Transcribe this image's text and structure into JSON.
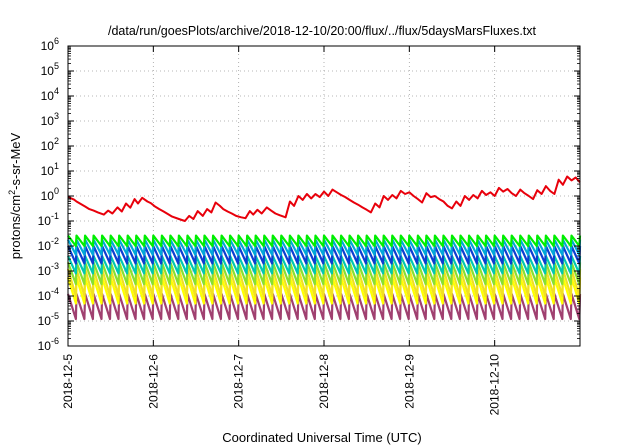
{
  "chart_data": {
    "type": "line",
    "title": "/data/run/goesPlots/archive/2018-12-10/20:00/flux/../flux/5daysMarsFluxes.txt",
    "xlabel": "Coordinated Universal Time (UTC)",
    "ylabel": {
      "base": "protons/cm",
      "sup": "2",
      "rest": "-s-sr-MeV"
    },
    "x_ticks": [
      "2018-12-5",
      "2018-12-6",
      "2018-12-7",
      "2018-12-8",
      "2018-12-9",
      "2018-12-10"
    ],
    "x_range_days": [
      0,
      6.0
    ],
    "y_scale": "log",
    "ylim": [
      1e-06,
      1000000.0
    ],
    "y_ticks": [
      {
        "base": "10",
        "exp": "-6"
      },
      {
        "base": "10",
        "exp": "-5"
      },
      {
        "base": "10",
        "exp": "-4"
      },
      {
        "base": "10",
        "exp": "-3"
      },
      {
        "base": "10",
        "exp": "-2"
      },
      {
        "base": "10",
        "exp": "-1"
      },
      {
        "base": "10",
        "exp": "0"
      },
      {
        "base": "10",
        "exp": "1"
      },
      {
        "base": "10",
        "exp": "2"
      },
      {
        "base": "10",
        "exp": "3"
      },
      {
        "base": "10",
        "exp": "4"
      },
      {
        "base": "10",
        "exp": "5"
      },
      {
        "base": "10",
        "exp": "6"
      }
    ],
    "grid": true,
    "series": [
      {
        "color": "#e8000b",
        "points": [
          [
            0.0,
            0.9
          ],
          [
            0.07,
            0.72
          ],
          [
            0.1,
            0.6
          ],
          [
            0.15,
            0.48
          ],
          [
            0.2,
            0.38
          ],
          [
            0.25,
            0.3
          ],
          [
            0.3,
            0.26
          ],
          [
            0.35,
            0.22
          ],
          [
            0.42,
            0.18
          ],
          [
            0.47,
            0.26
          ],
          [
            0.52,
            0.2
          ],
          [
            0.58,
            0.35
          ],
          [
            0.63,
            0.24
          ],
          [
            0.68,
            0.5
          ],
          [
            0.73,
            0.34
          ],
          [
            0.78,
            0.75
          ],
          [
            0.82,
            0.5
          ],
          [
            0.87,
            0.85
          ],
          [
            0.93,
            0.6
          ],
          [
            0.97,
            0.52
          ],
          [
            1.02,
            0.38
          ],
          [
            1.07,
            0.3
          ],
          [
            1.12,
            0.24
          ],
          [
            1.17,
            0.19
          ],
          [
            1.22,
            0.15
          ],
          [
            1.3,
            0.12
          ],
          [
            1.37,
            0.1
          ],
          [
            1.42,
            0.16
          ],
          [
            1.47,
            0.12
          ],
          [
            1.52,
            0.25
          ],
          [
            1.58,
            0.16
          ],
          [
            1.63,
            0.3
          ],
          [
            1.68,
            0.22
          ],
          [
            1.73,
            0.55
          ],
          [
            1.78,
            0.4
          ],
          [
            1.82,
            0.3
          ],
          [
            1.87,
            0.24
          ],
          [
            1.92,
            0.2
          ],
          [
            1.97,
            0.16
          ],
          [
            2.03,
            0.14
          ],
          [
            2.08,
            0.13
          ],
          [
            2.13,
            0.25
          ],
          [
            2.17,
            0.18
          ],
          [
            2.22,
            0.28
          ],
          [
            2.27,
            0.2
          ],
          [
            2.33,
            0.35
          ],
          [
            2.38,
            0.26
          ],
          [
            2.43,
            0.2
          ],
          [
            2.48,
            0.17
          ],
          [
            2.55,
            0.14
          ],
          [
            2.6,
            0.6
          ],
          [
            2.65,
            0.4
          ],
          [
            2.7,
            1.0
          ],
          [
            2.75,
            0.7
          ],
          [
            2.8,
            1.2
          ],
          [
            2.85,
            0.8
          ],
          [
            2.9,
            1.2
          ],
          [
            2.95,
            0.9
          ],
          [
            3.0,
            1.5
          ],
          [
            3.05,
            1.0
          ],
          [
            3.1,
            1.8
          ],
          [
            3.15,
            1.4
          ],
          [
            3.2,
            1.1
          ],
          [
            3.25,
            0.9
          ],
          [
            3.3,
            0.7
          ],
          [
            3.35,
            0.55
          ],
          [
            3.4,
            0.45
          ],
          [
            3.45,
            0.35
          ],
          [
            3.5,
            0.28
          ],
          [
            3.55,
            0.22
          ],
          [
            3.6,
            0.5
          ],
          [
            3.65,
            0.35
          ],
          [
            3.7,
            1.0
          ],
          [
            3.75,
            0.7
          ],
          [
            3.8,
            1.1
          ],
          [
            3.85,
            0.8
          ],
          [
            3.9,
            1.6
          ],
          [
            3.95,
            1.2
          ],
          [
            4.0,
            1.4
          ],
          [
            4.05,
            1.0
          ],
          [
            4.1,
            0.75
          ],
          [
            4.15,
            0.55
          ],
          [
            4.2,
            1.3
          ],
          [
            4.25,
            0.9
          ],
          [
            4.3,
            1.0
          ],
          [
            4.35,
            0.75
          ],
          [
            4.4,
            0.6
          ],
          [
            4.45,
            0.4
          ],
          [
            4.5,
            0.32
          ],
          [
            4.55,
            0.6
          ],
          [
            4.6,
            0.4
          ],
          [
            4.65,
            1.0
          ],
          [
            4.7,
            0.7
          ],
          [
            4.75,
            1.1
          ],
          [
            4.8,
            0.8
          ],
          [
            4.85,
            1.6
          ],
          [
            4.9,
            1.1
          ],
          [
            4.95,
            1.4
          ],
          [
            5.0,
            1.0
          ],
          [
            5.05,
            2.1
          ],
          [
            5.1,
            1.5
          ],
          [
            5.15,
            1.9
          ],
          [
            5.2,
            1.3
          ],
          [
            5.25,
            1.0
          ],
          [
            5.3,
            1.8
          ],
          [
            5.35,
            1.3
          ],
          [
            5.4,
            1.0
          ],
          [
            5.45,
            0.75
          ],
          [
            5.5,
            1.7
          ],
          [
            5.55,
            1.2
          ],
          [
            5.6,
            2.5
          ],
          [
            5.65,
            1.6
          ],
          [
            5.7,
            1.2
          ],
          [
            5.75,
            4.5
          ],
          [
            5.8,
            2.8
          ],
          [
            5.85,
            6.0
          ],
          [
            5.9,
            4.2
          ],
          [
            5.95,
            5.5
          ],
          [
            6.0,
            3.5
          ]
        ]
      },
      {
        "color": "#00ee00",
        "peak": 0.026,
        "trough": 0.01
      },
      {
        "color": "#00a8d8",
        "peak": 0.018,
        "trough": 0.0045
      },
      {
        "color": "#0d3ed0",
        "peak": 0.01,
        "trough": 0.002
      },
      {
        "color": "#00c8b0",
        "peak": 0.004,
        "trough": 0.0008
      },
      {
        "color": "#88e030",
        "peak": 0.0022,
        "trough": 0.0003
      },
      {
        "color": "#f2e020",
        "peak": 0.0012,
        "trough": 0.0001
      },
      {
        "color": "#ffff00",
        "peak": 0.00055,
        "trough": 5e-05
      },
      {
        "color": "#a04070",
        "peak": 0.00012,
        "trough": 1.2e-05
      }
    ],
    "sawtooth_period_days": 0.1
  }
}
